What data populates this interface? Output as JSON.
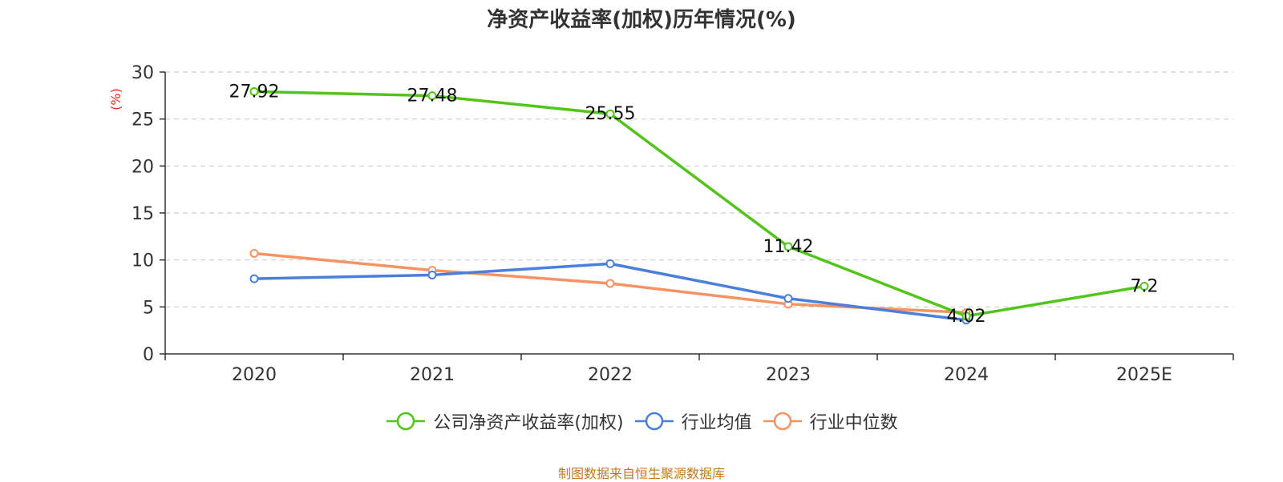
{
  "chart_data": {
    "type": "line",
    "title": "净资产收益率(加权)历年情况(%)",
    "ylabel": "(%)",
    "xlabel": "",
    "categories": [
      "2020",
      "2021",
      "2022",
      "2023",
      "2024",
      "2025E"
    ],
    "ylim": [
      0,
      30
    ],
    "yticks": [
      0,
      5,
      10,
      15,
      20,
      25,
      30
    ],
    "grid": true,
    "legend_position": "bottom",
    "series": [
      {
        "name": "公司净资产收益率(加权)",
        "color": "#52c41a",
        "values": [
          27.92,
          27.48,
          25.55,
          11.42,
          4.02,
          7.2
        ],
        "show_labels": true
      },
      {
        "name": "行业均值",
        "color": "#4a7fdc",
        "values": [
          8.0,
          8.4,
          9.6,
          5.9,
          3.6,
          null
        ],
        "show_labels": false
      },
      {
        "name": "行业中位数",
        "color": "#f59363",
        "values": [
          10.7,
          8.9,
          7.5,
          5.3,
          4.4,
          null
        ],
        "show_labels": false
      }
    ],
    "label_color": "#111111",
    "ylabel_color": "#e8281e"
  },
  "source": "制图数据来自恒生聚源数据库"
}
